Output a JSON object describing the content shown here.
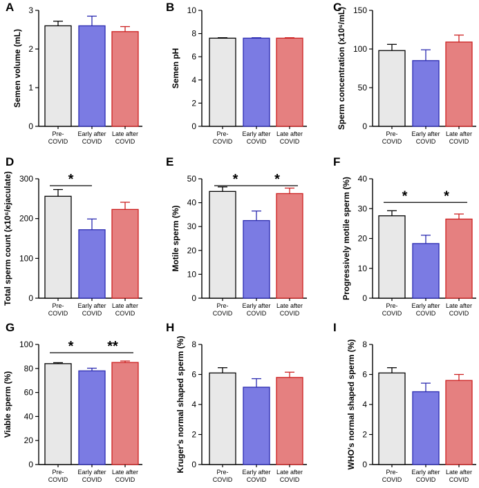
{
  "categories": [
    "Pre-\nCOVID",
    "Early after\nCOVID",
    "Late after\nCOVID"
  ],
  "colors": {
    "fills": [
      "#e8e8e8",
      "#7b7be3",
      "#e58080"
    ],
    "edges": [
      "#000000",
      "#2a2ab0",
      "#cc1f1f"
    ]
  },
  "chart_data": [
    {
      "panel": "A",
      "type": "bar",
      "ylabel": "Semen volume (mL)",
      "ylim": [
        0,
        3
      ],
      "ticks": [
        0,
        1,
        2,
        3
      ],
      "values": [
        2.6,
        2.6,
        2.45
      ],
      "errors": [
        0.12,
        0.25,
        0.13
      ],
      "significance": []
    },
    {
      "panel": "B",
      "type": "bar",
      "ylabel": "Semen pH",
      "ylim": [
        0,
        10
      ],
      "ticks": [
        0,
        2,
        4,
        6,
        8,
        10
      ],
      "values": [
        7.6,
        7.6,
        7.6
      ],
      "errors": [
        0.04,
        0.04,
        0.04
      ],
      "significance": []
    },
    {
      "panel": "C",
      "type": "bar",
      "ylabel": "Sperm concentration (x10⁶/mL)",
      "ylim": [
        0,
        150
      ],
      "ticks": [
        0,
        50,
        100,
        150
      ],
      "values": [
        98,
        85,
        109
      ],
      "errors": [
        8,
        14,
        9
      ],
      "significance": []
    },
    {
      "panel": "D",
      "type": "bar",
      "ylabel": "Total sperm count (x10⁶/ejaculate)",
      "ylim": [
        0,
        300
      ],
      "ticks": [
        0,
        100,
        200,
        300
      ],
      "values": [
        256,
        172,
        223
      ],
      "errors": [
        17,
        27,
        18
      ],
      "significance": [
        {
          "from": 0,
          "to": 1,
          "label": "*"
        }
      ]
    },
    {
      "panel": "E",
      "type": "bar",
      "ylabel": "Motile sperm (%)",
      "ylim": [
        0,
        50
      ],
      "ticks": [
        0,
        10,
        20,
        30,
        40,
        50
      ],
      "values": [
        44.7,
        32.5,
        43.8
      ],
      "errors": [
        1.9,
        4,
        2.3
      ],
      "significance": [
        {
          "from": 0,
          "to": 1,
          "label": "*"
        },
        {
          "from": 1,
          "to": 2,
          "label": "*"
        }
      ]
    },
    {
      "panel": "F",
      "type": "bar",
      "ylabel": "Progressively motile sperm (%)",
      "ylim": [
        0,
        40
      ],
      "ticks": [
        0,
        10,
        20,
        30,
        40
      ],
      "values": [
        27.6,
        18.3,
        26.5
      ],
      "errors": [
        1.7,
        2.8,
        1.7
      ],
      "significance": [
        {
          "from": 0,
          "to": 1,
          "label": "*"
        },
        {
          "from": 1,
          "to": 2,
          "label": "*"
        }
      ]
    },
    {
      "panel": "G",
      "type": "bar",
      "ylabel": "Viable sperm (%)",
      "ylim": [
        0,
        100
      ],
      "ticks": [
        0,
        20,
        40,
        60,
        80,
        100
      ],
      "values": [
        84,
        78,
        85
      ],
      "errors": [
        0.8,
        2.2,
        1.2
      ],
      "significance": [
        {
          "from": 0,
          "to": 1,
          "label": "*"
        },
        {
          "from": 1,
          "to": 2,
          "label": "**"
        }
      ]
    },
    {
      "panel": "H",
      "type": "bar",
      "ylabel": "Kruger's normal shaped sperm (%)",
      "ylim": [
        0,
        8
      ],
      "ticks": [
        0,
        2,
        4,
        6,
        8
      ],
      "values": [
        6.1,
        5.15,
        5.8
      ],
      "errors": [
        0.35,
        0.57,
        0.35
      ],
      "significance": []
    },
    {
      "panel": "I",
      "type": "bar",
      "ylabel": "WHO's normal shaped sperm (%)",
      "ylim": [
        0,
        8
      ],
      "ticks": [
        0,
        2,
        4,
        6,
        8
      ],
      "values": [
        6.1,
        4.85,
        5.6
      ],
      "errors": [
        0.35,
        0.57,
        0.4
      ],
      "significance": []
    }
  ]
}
